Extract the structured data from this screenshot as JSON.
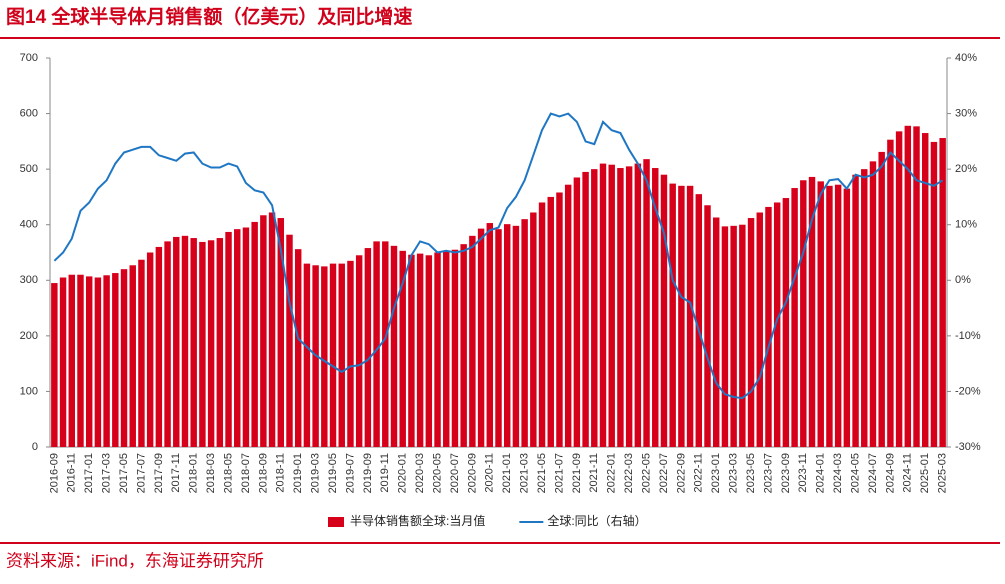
{
  "chart_data": {
    "type": "bar-line",
    "title": "图14  全球半导体月销售额（亿美元）及同比增速",
    "source": "资料来源：iFind，东海证券研究所",
    "categories": [
      "2016-09",
      null,
      "2016-11",
      null,
      "2017-01",
      null,
      "2017-03",
      null,
      "2017-05",
      null,
      "2017-07",
      null,
      "2017-09",
      null,
      "2017-11",
      null,
      "2018-01",
      null,
      "2018-03",
      null,
      "2018-05",
      null,
      "2018-07",
      null,
      "2018-09",
      null,
      "2018-11",
      null,
      "2019-01",
      null,
      "2019-03",
      null,
      "2019-05",
      null,
      "2019-07",
      null,
      "2019-09",
      null,
      "2019-11",
      null,
      "2020-01",
      null,
      "2020-03",
      null,
      "2020-05",
      null,
      "2020-07",
      null,
      "2020-09",
      null,
      "2020-11",
      null,
      "2021-01",
      null,
      "2021-03",
      null,
      "2021-05",
      null,
      "2021-07",
      null,
      "2021-09",
      null,
      "2021-11",
      null,
      "2022-01",
      null,
      "2022-03",
      null,
      "2022-05",
      null,
      "2022-07",
      null,
      "2022-09",
      null,
      "2022-11",
      null,
      "2023-01",
      null,
      "2023-03",
      null,
      "2023-05",
      null,
      "2023-07",
      null,
      "2023-09",
      null,
      "2023-11",
      null,
      "2024-01",
      null,
      "2024-03",
      null,
      "2024-05",
      null,
      "2024-07",
      null,
      "2024-09",
      null,
      "2024-11",
      null,
      "2025-01",
      null,
      "2025-03"
    ],
    "series": [
      {
        "name": "半导体销售额全球:当月值",
        "color": "#d7001b",
        "kind": "bar",
        "values": [
          295,
          305,
          310,
          310,
          307,
          305,
          309,
          313,
          320,
          327,
          337,
          350,
          360,
          370,
          378,
          380,
          376,
          369,
          372,
          376,
          387,
          392,
          395,
          405,
          417,
          422,
          412,
          382,
          356,
          330,
          327,
          325,
          330,
          330,
          335,
          345,
          358,
          370,
          370,
          362,
          353,
          346,
          348,
          345,
          350,
          352,
          355,
          365,
          380,
          393,
          403,
          392,
          401,
          398,
          410,
          422,
          440,
          450,
          458,
          472,
          485,
          495,
          500,
          510,
          508,
          502,
          505,
          510,
          518,
          502,
          490,
          474,
          470,
          470,
          455,
          435,
          413,
          397,
          398,
          400,
          412,
          422,
          432,
          440,
          448,
          466,
          480,
          486,
          478,
          470,
          472,
          465,
          490,
          500,
          514,
          531,
          553,
          568,
          578,
          577,
          565,
          549,
          556
        ]
      },
      {
        "name": "全球:同比（右轴）",
        "color": "#1f77c4",
        "kind": "line",
        "axis": "y2",
        "values": [
          3.5,
          5,
          7.5,
          12.5,
          14,
          16.5,
          18,
          21,
          23,
          23.5,
          24,
          24,
          22.5,
          22,
          21.5,
          22.8,
          23,
          21,
          20.3,
          20.3,
          21,
          20.5,
          17.5,
          16.2,
          15.8,
          13.5,
          5.5,
          -4,
          -10.5,
          -12,
          -13.5,
          -14.5,
          -15.5,
          -16.5,
          -15.5,
          -15.3,
          -14.3,
          -12.5,
          -10.5,
          -5,
          -0.5,
          4.5,
          7,
          6.5,
          5,
          5.3,
          5,
          5.3,
          6,
          7.5,
          9,
          9.5,
          13,
          15,
          18,
          22.5,
          27,
          30,
          29.5,
          30,
          28.5,
          25,
          24.5,
          28.5,
          27,
          26.5,
          23.5,
          21,
          18,
          13,
          8.5,
          0,
          -3,
          -4,
          -9,
          -14,
          -18.5,
          -20.5,
          -21,
          -21.2,
          -20,
          -17.5,
          -12,
          -7,
          -4,
          0.5,
          5,
          11,
          15.5,
          18,
          18.2,
          16.5,
          19,
          18.5,
          19,
          20.5,
          23,
          21.5,
          20,
          18,
          17.5,
          17,
          18
        ]
      }
    ],
    "ylim": [
      0,
      700
    ],
    "yticks": [
      0,
      100,
      200,
      300,
      400,
      500,
      600,
      700
    ],
    "y2lim": [
      -30,
      40
    ],
    "y2ticks": [
      {
        "value": -30,
        "label": "-30%"
      },
      {
        "value": -20,
        "label": "-20%"
      },
      {
        "value": -10,
        "label": "-10%"
      },
      {
        "value": 0,
        "label": "0%"
      },
      {
        "value": 10,
        "label": "10%"
      },
      {
        "value": 20,
        "label": "20%"
      },
      {
        "value": 30,
        "label": "30%"
      },
      {
        "value": 40,
        "label": "40%"
      }
    ]
  }
}
